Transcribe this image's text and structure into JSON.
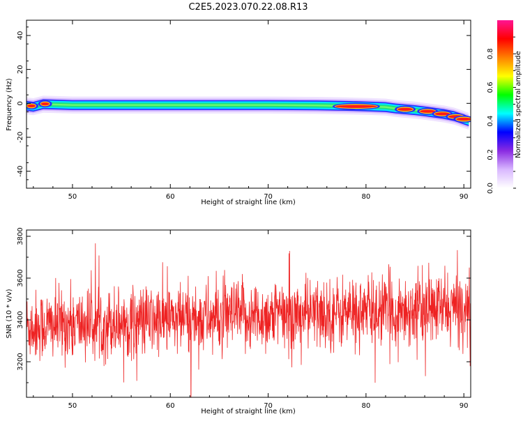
{
  "title": "C2E5.2023.070.22.08.R13",
  "colors": {
    "snr_line": "#ee2222",
    "axis": "#000000",
    "colorbar": [
      "#ffffff",
      "#d9b8ff",
      "#8a2be2",
      "#0000ff",
      "#00ffff",
      "#00ff00",
      "#ffff00",
      "#ff8000",
      "#ff0000",
      "#ff1493"
    ]
  },
  "chart_data": [
    {
      "type": "heatmap",
      "description_of_ridge": "single frequency trace vs height",
      "xlabel": "Height of straight line (km)",
      "ylabel": "Frequency (Hz)",
      "xlim": [
        45.3,
        90.7
      ],
      "ylim": [
        -50,
        49
      ],
      "x_ticks": [
        50,
        60,
        70,
        80,
        90
      ],
      "y_ticks": [
        -40,
        -20,
        0,
        20,
        40
      ],
      "ridge": {
        "x": [
          45.3,
          46,
          47,
          50,
          55,
          60,
          65,
          70,
          75,
          78,
          80,
          81,
          82,
          83,
          84,
          85,
          86,
          87,
          88,
          89,
          89.5,
          90,
          90.5
        ],
        "y": [
          -1.5,
          -2,
          -0.5,
          -1,
          -1,
          -1,
          -1,
          -1,
          -1.2,
          -1.5,
          -1.8,
          -2,
          -2.2,
          -3,
          -3.5,
          -4,
          -4.7,
          -5.5,
          -6.3,
          -7.5,
          -8.5,
          -9.5,
          -10.5
        ]
      },
      "hotspots": [
        {
          "x": 45.8,
          "y": -1.5
        },
        {
          "x": 47.2,
          "y": -0.3
        },
        {
          "x": 79.0,
          "y": -1.8
        },
        {
          "x": 84.0,
          "y": -3.5
        },
        {
          "x": 86.3,
          "y": -4.7
        },
        {
          "x": 87.8,
          "y": -6.2
        },
        {
          "x": 89.2,
          "y": -7.8
        },
        {
          "x": 90.0,
          "y": -9.3
        }
      ],
      "colorbar": {
        "label": "Normalized spectral amplitude",
        "ticks": [
          "0.0",
          "0.2",
          "0.4",
          "0.6",
          "0.8"
        ],
        "range": [
          0,
          1
        ]
      }
    },
    {
      "type": "line",
      "xlabel": "Height of straight line (km)",
      "ylabel": "SNR (10 * v/v)",
      "xlim": [
        45.3,
        90.7
      ],
      "ylim": [
        3030,
        3830
      ],
      "x_ticks": [
        50,
        60,
        70,
        80,
        90
      ],
      "y_ticks": [
        3200,
        3400,
        3600,
        3800
      ],
      "trend": {
        "x": [
          45.3,
          90.7
        ],
        "y": [
          3370,
          3460
        ]
      },
      "noise_sd": 85,
      "samples": 1600
    }
  ]
}
